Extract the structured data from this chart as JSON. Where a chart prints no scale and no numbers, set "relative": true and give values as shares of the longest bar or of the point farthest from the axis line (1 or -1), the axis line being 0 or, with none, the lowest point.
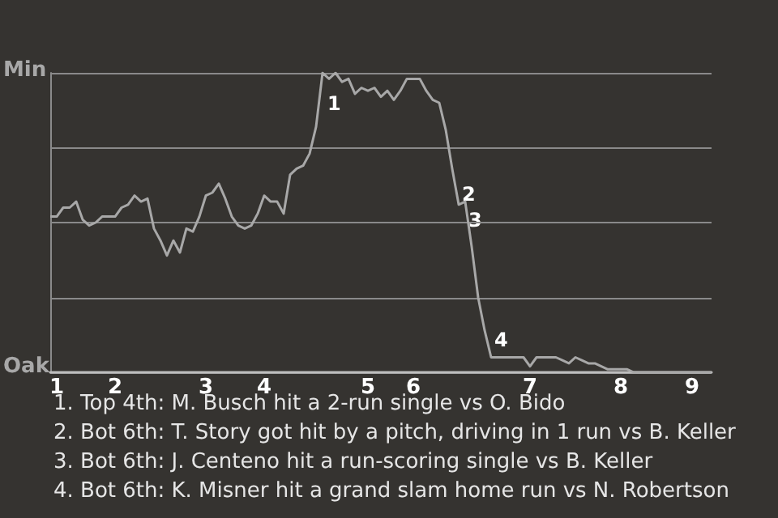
{
  "chart_data": {
    "type": "line",
    "relative": true,
    "categories": [
      null,
      "1",
      null,
      null,
      null,
      null,
      null,
      null,
      null,
      null,
      "2",
      null,
      null,
      null,
      null,
      null,
      null,
      null,
      null,
      null,
      null,
      null,
      null,
      null,
      "3",
      null,
      null,
      null,
      null,
      null,
      null,
      null,
      null,
      "4",
      null,
      null,
      null,
      null,
      null,
      null,
      null,
      null,
      null,
      null,
      null,
      null,
      null,
      null,
      null,
      "5",
      null,
      null,
      null,
      null,
      null,
      null,
      "6",
      null,
      null,
      null,
      null,
      null,
      null,
      null,
      null,
      null,
      null,
      null,
      null,
      null,
      null,
      null,
      null,
      null,
      "7",
      null,
      null,
      null,
      null,
      null,
      null,
      null,
      null,
      null,
      null,
      null,
      null,
      null,
      "8",
      null,
      null,
      null,
      null,
      null,
      null,
      null,
      null,
      null,
      null,
      "9",
      null,
      null,
      null
    ],
    "series": [
      {
        "color": "#a8a8a8",
        "values": [
          0.52,
          0.52,
          0.55,
          0.55,
          0.57,
          0.51,
          0.49,
          0.5,
          0.52,
          0.52,
          0.52,
          0.55,
          0.56,
          0.59,
          0.57,
          0.58,
          0.48,
          0.44,
          0.39,
          0.44,
          0.4,
          0.48,
          0.47,
          0.52,
          0.59,
          0.6,
          0.63,
          0.58,
          0.52,
          0.49,
          0.48,
          0.49,
          0.53,
          0.59,
          0.57,
          0.57,
          0.53,
          0.66,
          0.68,
          0.69,
          0.73,
          0.82,
          1,
          0.98,
          1,
          0.97,
          0.98,
          0.93,
          0.95,
          0.94,
          0.95,
          0.92,
          0.94,
          0.91,
          0.94,
          0.98,
          0.98,
          0.98,
          0.94,
          0.91,
          0.9,
          0.81,
          0.68,
          0.56,
          0.57,
          0.42,
          0.25,
          0.14,
          0.05,
          0.05,
          0.05,
          0.05,
          0.05,
          0.05,
          0.02,
          0.05,
          0.05,
          0.05,
          0.05,
          0.04,
          0.03,
          0.05,
          0.04,
          0.03,
          0.03,
          0.02,
          0.01,
          0.01,
          0.01,
          0.01,
          0,
          0,
          0,
          0,
          0,
          0,
          0,
          0,
          0,
          0,
          0,
          0,
          0
        ]
      }
    ],
    "grid": "y",
    "marker": "none",
    "line_style": "solid",
    "annotations": [
      "1",
      "2",
      "3",
      "4",
      "Min",
      "Oak",
      "1. Top 4th: M. Busch hit a 2-run single vs O. Bido",
      "2. Bot 6th: T. Story got hit by a pitch, driving in 1 run vs B. Keller",
      "3. Bot 6th: J. Centeno hit a run-scoring single vs B. Keller",
      "4. Bot 6th: K. Misner hit a grand slam home run vs N. Robertson"
    ]
  }
}
